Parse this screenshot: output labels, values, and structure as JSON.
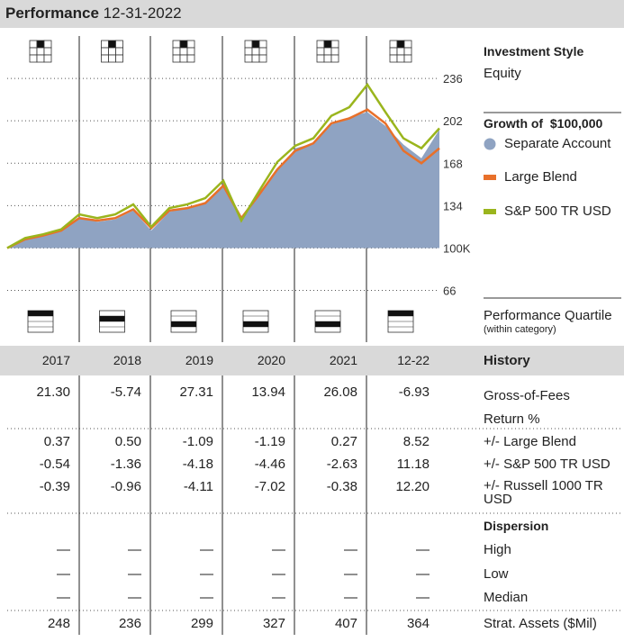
{
  "header": {
    "title": "Performance",
    "date": "12-31-2022"
  },
  "side": {
    "style_label": "Investment Style",
    "style_value": "Equity",
    "growth_label": "Growth of  $100,000",
    "quartile_label": "Performance Quartile",
    "quartile_note": "(within category)"
  },
  "chart_data": {
    "type": "area-line",
    "series": [
      {
        "name": "Separate Account",
        "color": "#8fa3c2",
        "style": "area",
        "values": [
          100,
          107,
          110,
          114,
          125,
          121,
          123,
          130,
          114,
          129,
          132,
          137,
          150,
          122,
          145,
          162,
          180,
          184,
          199,
          205,
          209,
          198,
          183,
          172,
          195
        ]
      },
      {
        "name": "Large Blend",
        "color": "#e8702a",
        "style": "line",
        "values": [
          100,
          107,
          110,
          114,
          124,
          122,
          124,
          131,
          116,
          130,
          132,
          136,
          150,
          124,
          143,
          163,
          178,
          184,
          200,
          204,
          211,
          200,
          178,
          168,
          180
        ]
      },
      {
        "name": "S&P 500 TR USD",
        "color": "#9ab51d",
        "style": "line",
        "values": [
          100,
          108,
          111,
          115,
          127,
          124,
          127,
          135,
          117,
          132,
          135,
          140,
          154,
          122,
          146,
          169,
          182,
          188,
          206,
          213,
          231,
          209,
          188,
          180,
          196
        ]
      }
    ],
    "ylim": [
      57,
      270
    ],
    "yticks": [
      66,
      {
        "value": 100,
        "label": "100K"
      },
      134,
      168,
      202,
      236
    ],
    "grid": true
  },
  "table": {
    "title": "History",
    "columns": [
      "2017",
      "2018",
      "2019",
      "2020",
      "2021",
      "12-22"
    ],
    "rows": [
      {
        "label": "Gross-of-Fees Return %",
        "values": [
          "21.30",
          "-5.74",
          "27.31",
          "13.94",
          "26.08",
          "-6.93"
        ]
      },
      {
        "label": "+/- Large Blend",
        "values": [
          "0.37",
          "0.50",
          "-1.09",
          "-1.19",
          "0.27",
          "8.52"
        ]
      },
      {
        "label": "+/- S&P 500 TR USD",
        "values": [
          "-0.54",
          "-1.36",
          "-4.18",
          "-4.46",
          "-2.63",
          "11.18"
        ]
      },
      {
        "label": "+/- Russell 1000 TR USD",
        "values": [
          "-0.39",
          "-0.96",
          "-4.11",
          "-7.02",
          "-0.38",
          "12.20"
        ]
      },
      {
        "label": "Dispersion"
      },
      {
        "label": "High",
        "values": [
          "—",
          "—",
          "—",
          "—",
          "—",
          "—"
        ]
      },
      {
        "label": "Low",
        "values": [
          "—",
          "—",
          "—",
          "—",
          "—",
          "—"
        ]
      },
      {
        "label": "Median",
        "values": [
          "—",
          "—",
          "—",
          "—",
          "—",
          "—"
        ]
      },
      {
        "label": "Strat. Assets ($Mil)",
        "values": [
          "248",
          "236",
          "299",
          "327",
          "407",
          "364"
        ]
      }
    ]
  }
}
